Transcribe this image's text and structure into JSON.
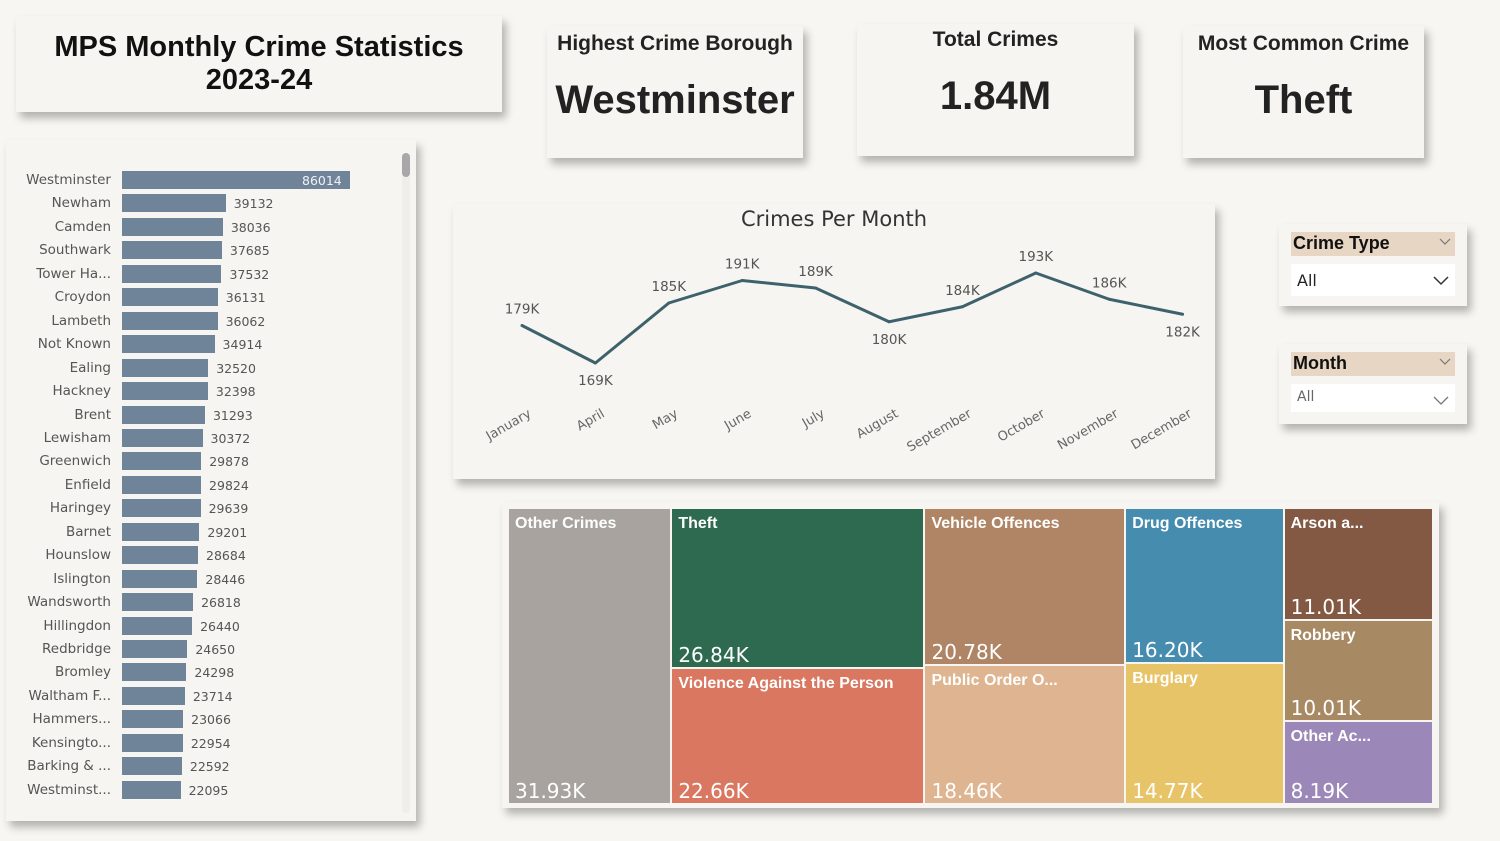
{
  "title": {
    "line1": "MPS Monthly Crime Statistics",
    "line2": "2023-24"
  },
  "kpis": {
    "highest_borough": {
      "label": "Highest Crime Borough",
      "value": "Westminster"
    },
    "total_crimes": {
      "label": "Total Crimes",
      "value": "1.84M"
    },
    "most_common": {
      "label": "Most Common Crime",
      "value": "Theft"
    }
  },
  "slicers": {
    "crime_type": {
      "label": "Crime Type",
      "value": "All"
    },
    "month": {
      "label": "Month",
      "value": "All"
    }
  },
  "colors": {
    "bar": "#6f8399",
    "line": "#3e626c"
  },
  "chart_data": [
    {
      "type": "bar",
      "orientation": "horizontal",
      "title": "",
      "categories": [
        "Westminster",
        "Newham",
        "Camden",
        "Southwark",
        "Tower Ha...",
        "Croydon",
        "Lambeth",
        "Not Known",
        "Ealing",
        "Hackney",
        "Brent",
        "Lewisham",
        "Greenwich",
        "Enfield",
        "Haringey",
        "Barnet",
        "Hounslow",
        "Islington",
        "Wandsworth",
        "Hillingdon",
        "Redbridge",
        "Bromley",
        "Waltham F...",
        "Hammers...",
        "Kensingto...",
        "Barking & ...",
        "Westminst..."
      ],
      "values": [
        86014,
        39132,
        38036,
        37685,
        37532,
        36131,
        36062,
        34914,
        32520,
        32398,
        31293,
        30372,
        29878,
        29824,
        29639,
        29201,
        28684,
        28446,
        26818,
        26440,
        24650,
        24298,
        23714,
        23066,
        22954,
        22592,
        22095
      ],
      "data_labels": [
        "86014",
        "39132",
        "38036",
        "37685",
        "37532",
        "36131",
        "36062",
        "34914",
        "32520",
        "32398",
        "31293",
        "30372",
        "29878",
        "29824",
        "29639",
        "29201",
        "28684",
        "28446",
        "26818",
        "26440",
        "24650",
        "24298",
        "23714",
        "23066",
        "22954",
        "22592",
        "22095"
      ],
      "xlabel": "",
      "ylabel": "",
      "grid": false
    },
    {
      "type": "line",
      "title": "Crimes Per Month",
      "x": [
        "January",
        "April",
        "May",
        "June",
        "July",
        "August",
        "September",
        "October",
        "November",
        "December"
      ],
      "values": [
        179000,
        169000,
        185000,
        191000,
        189000,
        180000,
        184000,
        193000,
        186000,
        182000
      ],
      "data_labels": [
        "179K",
        "169K",
        "185K",
        "191K",
        "189K",
        "180K",
        "184K",
        "193K",
        "186K",
        "182K"
      ],
      "xlabel": "",
      "ylabel": "",
      "grid": false
    },
    {
      "type": "treemap",
      "title": "",
      "items": [
        {
          "name": "Other Crimes",
          "label": "Other Crimes",
          "value": 31930,
          "display": "31.93K",
          "color": "#a8a39e"
        },
        {
          "name": "Theft",
          "label": "Theft",
          "value": 26840,
          "display": "26.84K",
          "color": "#2e6a50"
        },
        {
          "name": "Violence Against the Person",
          "label": "Violence Against the Person",
          "value": 22660,
          "display": "22.66K",
          "color": "#d97761"
        },
        {
          "name": "Vehicle Offences",
          "label": "Vehicle Offences",
          "value": 20780,
          "display": "20.78K",
          "color": "#b08566"
        },
        {
          "name": "Public Order Offences",
          "label": "Public Order O...",
          "value": 18460,
          "display": "18.46K",
          "color": "#deb590"
        },
        {
          "name": "Drug Offences",
          "label": "Drug Offences",
          "value": 16200,
          "display": "16.20K",
          "color": "#458caf"
        },
        {
          "name": "Burglary",
          "label": "Burglary",
          "value": 14770,
          "display": "14.77K",
          "color": "#e8c468"
        },
        {
          "name": "Arson and Criminal Damage",
          "label": "Arson a...",
          "value": 11010,
          "display": "11.01K",
          "color": "#835943"
        },
        {
          "name": "Robbery",
          "label": "Robbery",
          "value": 10010,
          "display": "10.01K",
          "color": "#a78963"
        },
        {
          "name": "Other Accepted Crimes",
          "label": "Other Ac...",
          "value": 8190,
          "display": "8.19K",
          "color": "#9b88b8"
        }
      ]
    }
  ]
}
